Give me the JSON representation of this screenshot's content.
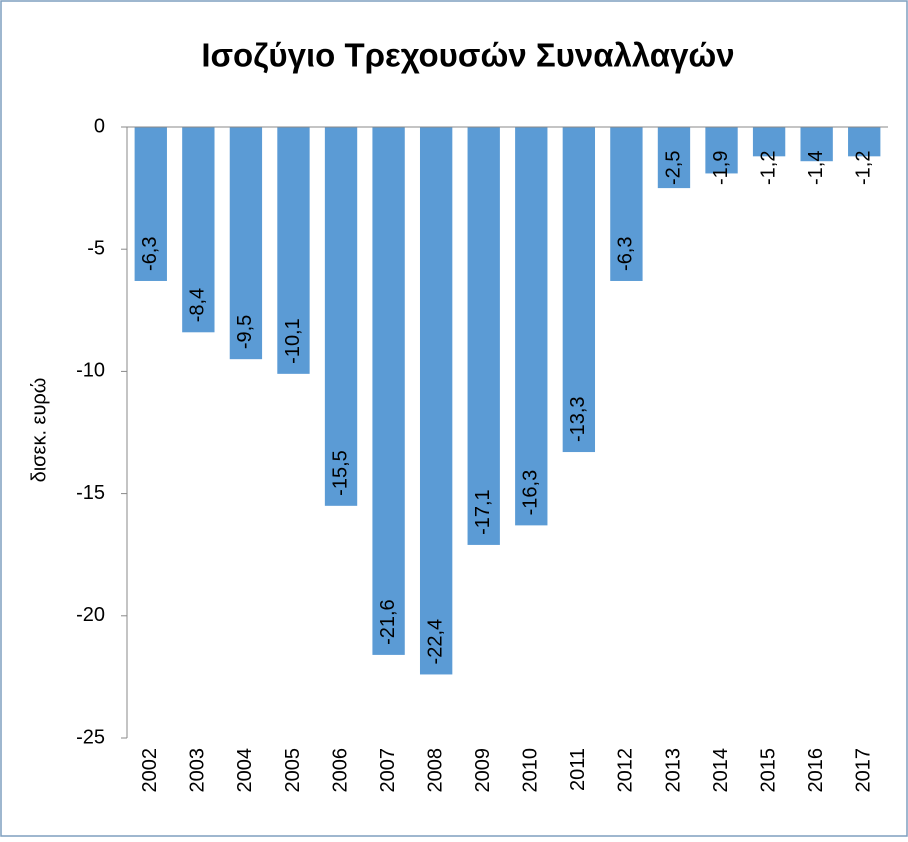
{
  "chart_data": {
    "type": "bar",
    "title": "Ισοζύγιο Τρεχουσών Συναλλαγών",
    "y_label": "δισεκ. ευρώ",
    "categories": [
      "2002",
      "2003",
      "2004",
      "2005",
      "2006",
      "2007",
      "2008",
      "2009",
      "2010",
      "2011",
      "2012",
      "2013",
      "2014",
      "2015",
      "2016",
      "2017"
    ],
    "values": [
      -6.3,
      -8.4,
      -9.5,
      -10.1,
      -15.5,
      -21.6,
      -22.4,
      -17.1,
      -16.3,
      -13.3,
      -6.3,
      -2.5,
      -1.9,
      -1.2,
      -1.4,
      -1.2
    ],
    "value_labels": [
      "-6,3",
      "-8,4",
      "-9,5",
      "-10,1",
      "-15,5",
      "-21,6",
      "-22,4",
      "-17,1",
      "-16,3",
      "-13,3",
      "-6,3",
      "-2,5",
      "-1,9",
      "-1,2",
      "-1,4",
      "-1,2"
    ],
    "color": "#5b9bd5",
    "ylim": [
      -25,
      0
    ],
    "yticks": [
      0,
      -5,
      -10,
      -15,
      -20,
      -25
    ],
    "grid": false
  }
}
